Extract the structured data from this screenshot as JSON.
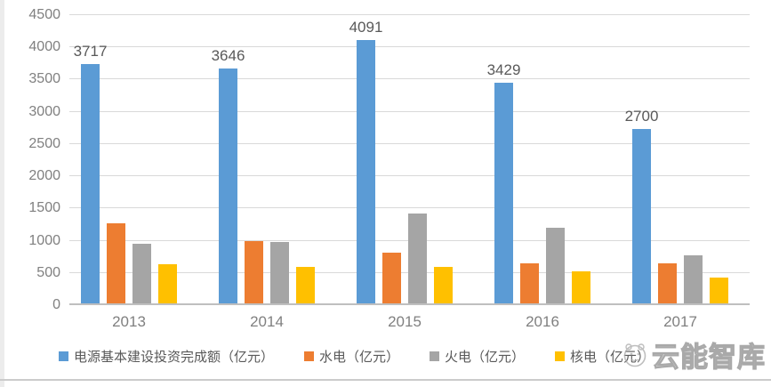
{
  "chart_data": {
    "type": "bar",
    "title": "",
    "categories": [
      "2013",
      "2014",
      "2015",
      "2016",
      "2017"
    ],
    "series": [
      {
        "name": "电源基本建设投资完成额（亿元）",
        "color": "#5B9BD5",
        "values": [
          3717,
          3646,
          4091,
          3429,
          2700
        ],
        "data_labels": [
          "3717",
          "3646",
          "4091",
          "3429",
          "2700"
        ]
      },
      {
        "name": "水电（亿元）",
        "color": "#ED7D31",
        "values": [
          1246,
          960,
          782,
          617,
          618
        ]
      },
      {
        "name": "火电（亿元）",
        "color": "#A5A5A5",
        "values": [
          928,
          952,
          1396,
          1174,
          740
        ]
      },
      {
        "name": "核电（亿元）",
        "color": "#FFC000",
        "values": [
          609,
          569,
          560,
          500,
          395
        ]
      }
    ],
    "ylim": [
      0,
      4500
    ],
    "ytick_step": 500,
    "grid": "horizontal",
    "legend_position": "bottom"
  },
  "colors": {
    "gridline": "#D9D9D9",
    "baseline": "#BFBFBF",
    "tick_label": "#808080",
    "data_label": "#595959",
    "legend_text": "#595959"
  },
  "watermark": {
    "text": "云能智库",
    "logo": "mascot-face-icon"
  }
}
